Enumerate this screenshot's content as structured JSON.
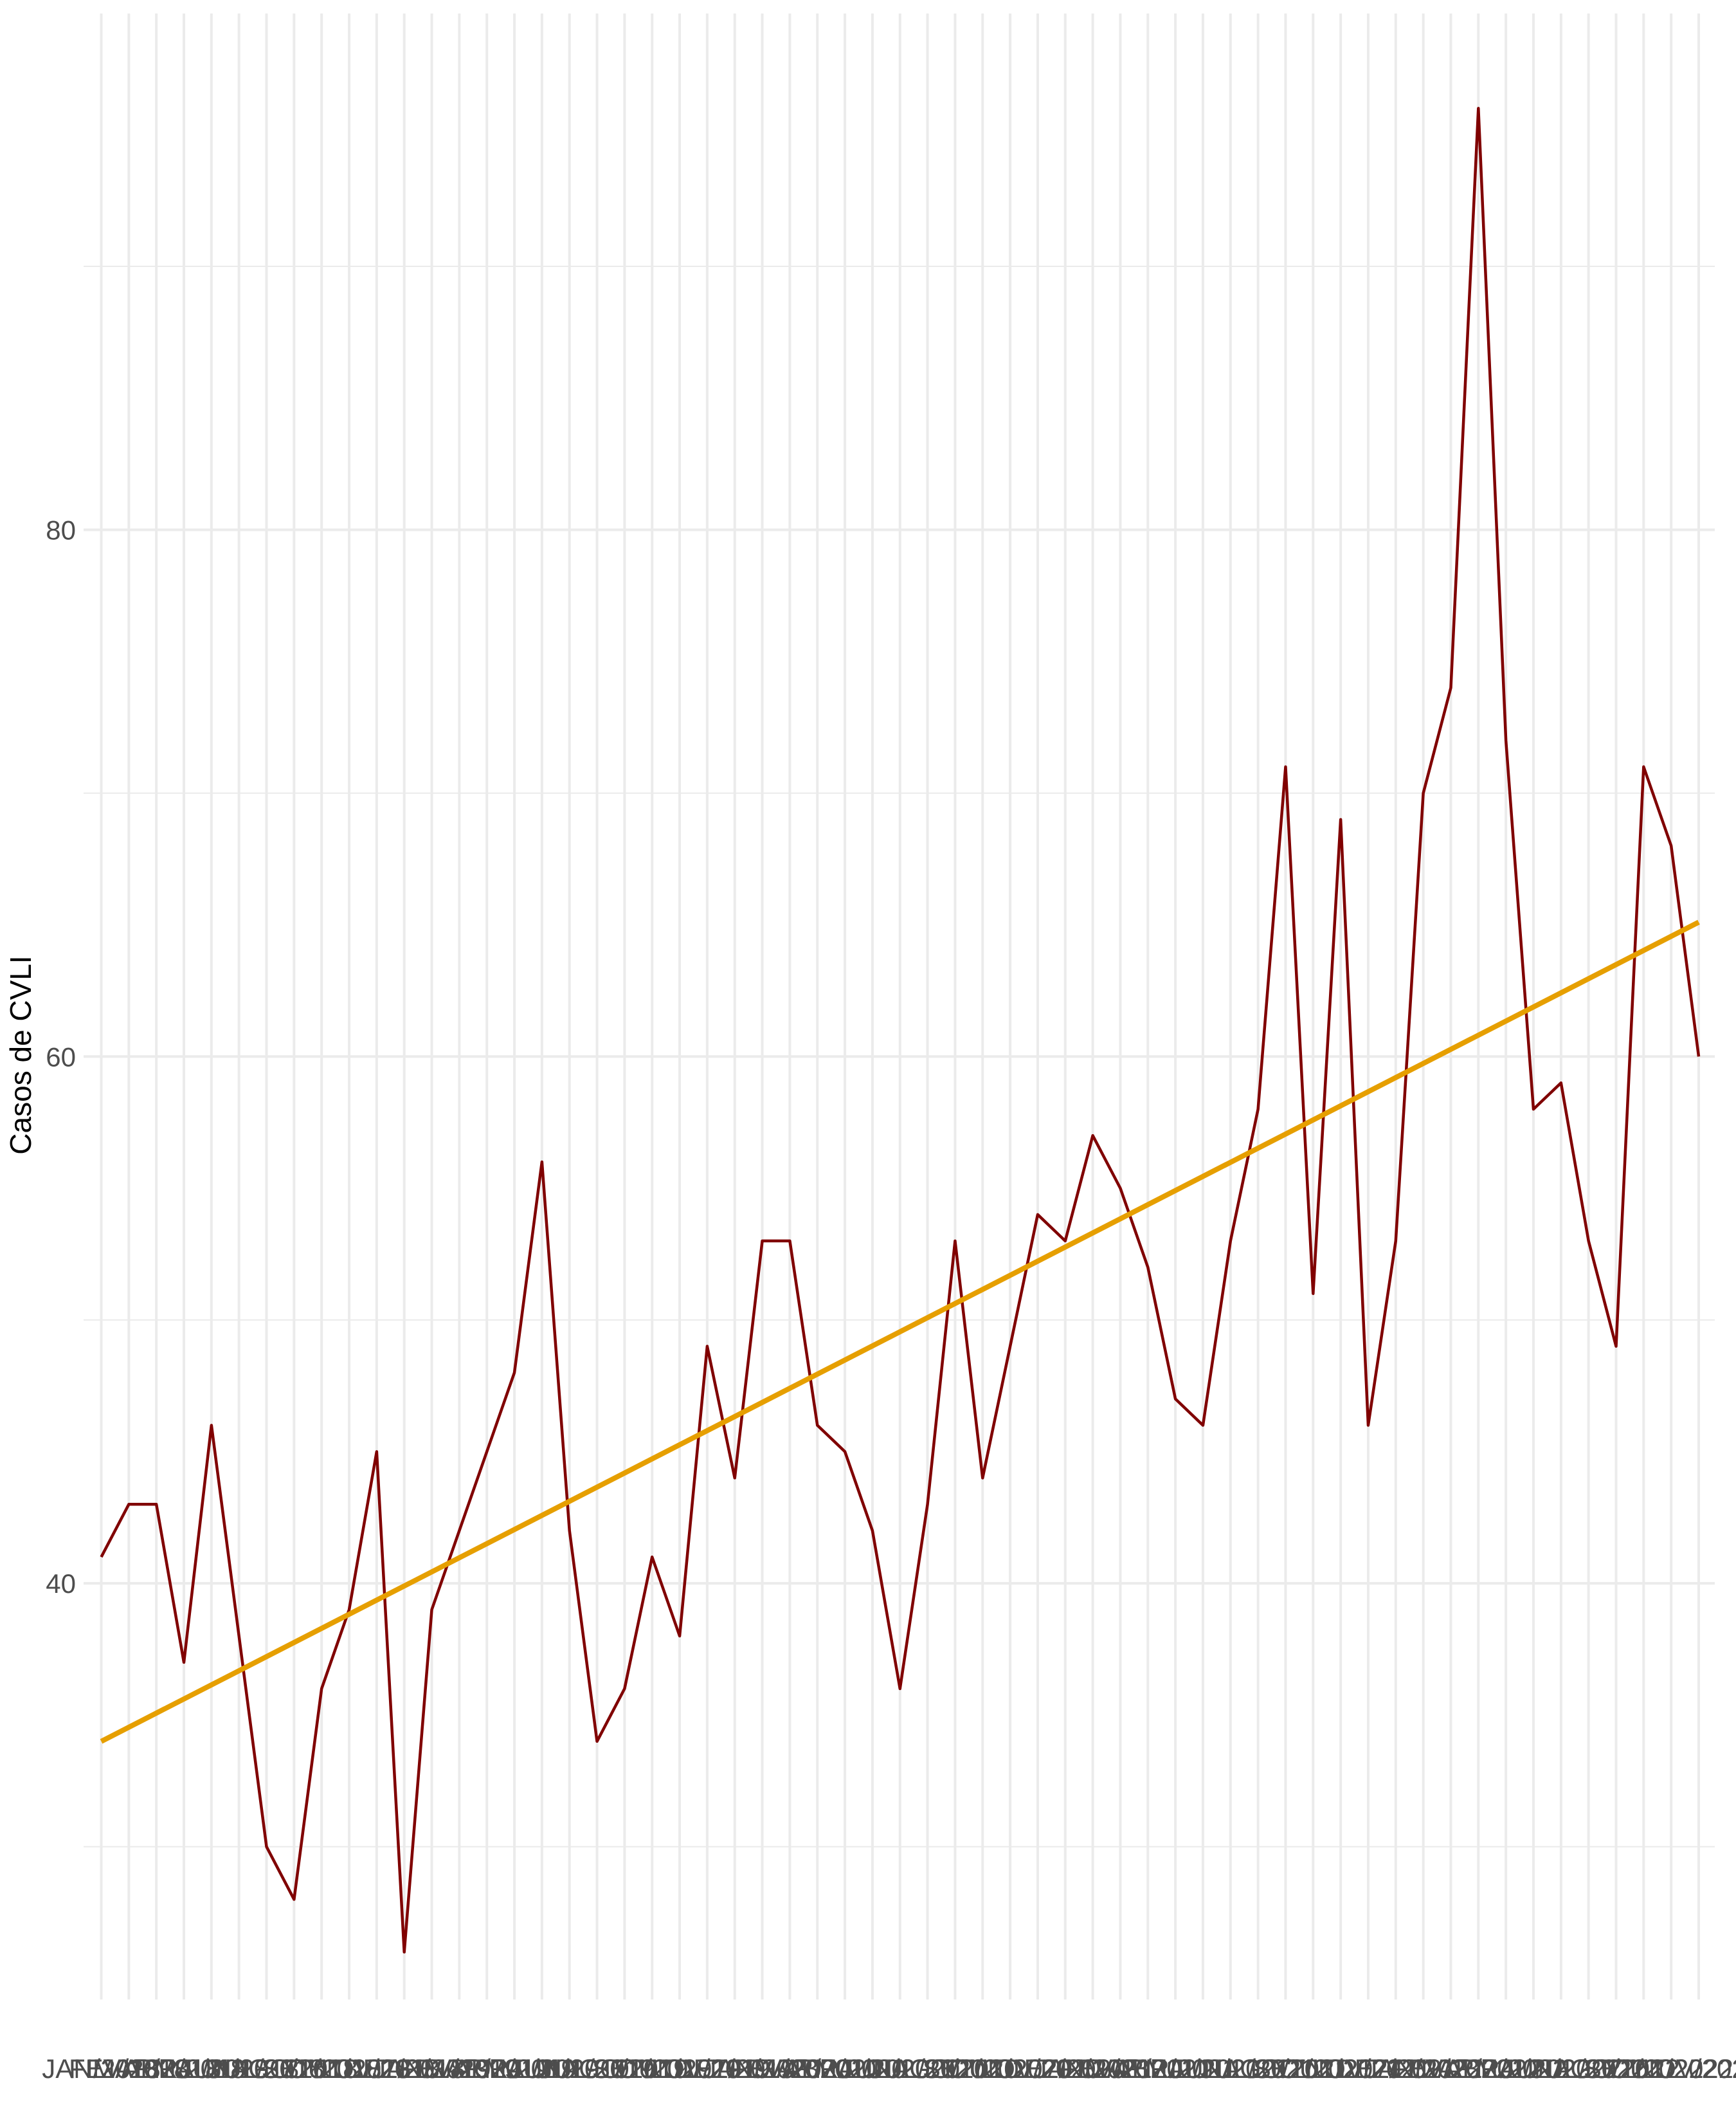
{
  "chart_data": {
    "type": "line",
    "y_label": "Casos de CVLI",
    "categories": [
      "JAN/2018",
      "FEV/2018",
      "MAR/2018",
      "ABR/2018",
      "MAI/2018",
      "JUN/2018",
      "JUL/2018",
      "AGO/2018",
      "SET/2018",
      "OUT/2018",
      "NOV/2018",
      "DEZ/2018",
      "JAN/2019",
      "FEV/2019",
      "MAR/2019",
      "ABR/2019",
      "MAI/2019",
      "JUN/2019",
      "JUL/2019",
      "AGO/2019",
      "SET/2019",
      "OUT/2019",
      "NOV/2019",
      "DEZ/2019",
      "JAN/2020",
      "FEV/2020",
      "MAR/2020",
      "ABR/2020",
      "MAI/2020",
      "JUN/2020",
      "JUL/2020",
      "AGO/2020",
      "SET/2020",
      "OUT/2020",
      "NOV/2020",
      "DEZ/2020",
      "JAN/2021",
      "FEV/2021",
      "MAR/2021",
      "ABR/2021",
      "MAI/2021",
      "JUN/2021",
      "JUL/2021",
      "AGO/2021",
      "SET/2021",
      "OUT/2021",
      "NOV/2021",
      "DEZ/2021",
      "JAN/2022",
      "FEV/2022",
      "MAR/2022",
      "ABR/2022",
      "MAI/2022",
      "JUN/2022",
      "JUL/2022",
      "AGO/2022",
      "SET/2022",
      "OUT/2022",
      "NOV/2022"
    ],
    "series": [
      {
        "color": "#800000",
        "values": [
          41,
          43,
          43,
          37,
          46,
          38,
          30,
          28,
          36,
          39,
          45,
          26,
          39,
          42,
          45,
          48,
          56,
          42,
          34,
          36,
          41,
          38,
          49,
          44,
          53,
          53,
          46,
          45,
          42,
          36,
          43,
          53,
          44,
          49,
          54,
          53,
          57,
          55,
          52,
          47,
          46,
          53,
          58,
          71,
          51,
          69,
          46,
          53,
          70,
          74,
          96,
          72,
          58,
          59,
          53,
          49,
          71,
          68,
          60
        ]
      }
    ],
    "trend_line": {
      "color": "#E69F00",
      "values": [
        34,
        65.1
      ]
    },
    "ylim": [
      24.2,
      99.6
    ],
    "yticks": [
      40,
      60,
      80
    ],
    "y_minor_gridlines": [
      30,
      50,
      70,
      90
    ],
    "grid": true
  }
}
